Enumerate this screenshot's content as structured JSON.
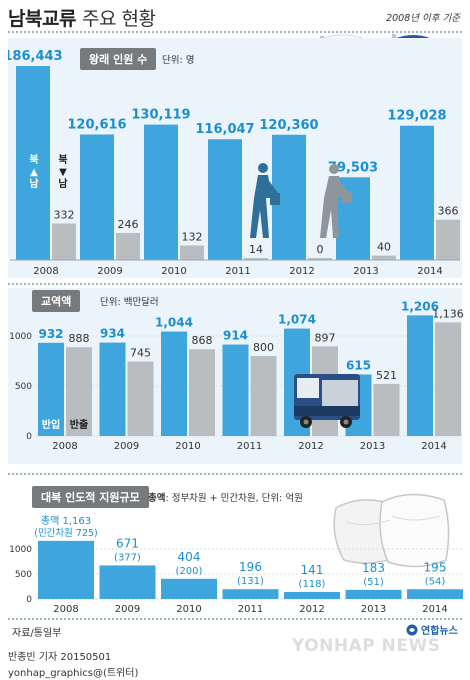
{
  "header": {
    "title_bold": "남북교류",
    "title_rest": "주요 현황",
    "basis": "2008년 이후 기준"
  },
  "colors": {
    "blue": "#3fa6dd",
    "gray": "#b9bdc0",
    "value_blue": "#1c8fd0",
    "panel": "#eaf4fa"
  },
  "icons": [
    "korea-flag-icon",
    "north-korea-flag-icon",
    "walking-person-icon",
    "truck-icon",
    "rice-sack-icon",
    "yonhap-logo-icon"
  ],
  "section1": {
    "title": "왕래 인원 수",
    "unit": "단위: 명",
    "legend_blue": "북▲남",
    "legend_gray": "북▼남",
    "chart_data": {
      "type": "bar",
      "categories": [
        "2008",
        "2009",
        "2010",
        "2011",
        "2012",
        "2013",
        "2014"
      ],
      "series": [
        {
          "name": "북▲남",
          "values": [
            186443,
            120616,
            130119,
            116047,
            120360,
            79503,
            129028
          ],
          "labels": [
            "186,443",
            "120,616",
            "130,119",
            "116,047",
            "120,360",
            "79,503",
            "129,028"
          ]
        },
        {
          "name": "북▼남",
          "values": [
            332,
            246,
            132,
            14,
            0,
            40,
            366
          ],
          "labels": [
            "332",
            "246",
            "132",
            "14",
            "0",
            "40",
            "366"
          ]
        }
      ]
    }
  },
  "section2": {
    "title": "교역액",
    "unit": "단위: 백만달러",
    "legend_blue": "반입",
    "legend_gray": "반출",
    "chart_data": {
      "type": "bar",
      "categories": [
        "2008",
        "2009",
        "2010",
        "2011",
        "2012",
        "2013",
        "2014"
      ],
      "yticks": [
        "0",
        "500",
        "1000"
      ],
      "ylim": [
        0,
        1000
      ],
      "series": [
        {
          "name": "반입",
          "values": [
            932,
            934,
            1044,
            914,
            1074,
            615,
            1206
          ],
          "labels": [
            "932",
            "934",
            "1,044",
            "914",
            "1,074",
            "615",
            "1,206"
          ]
        },
        {
          "name": "반출",
          "values": [
            888,
            745,
            868,
            800,
            897,
            521,
            1136
          ],
          "labels": [
            "888",
            "745",
            "868",
            "800",
            "897",
            "521",
            "1,136"
          ]
        }
      ]
    }
  },
  "section3": {
    "title": "대북 인도적 지원규모",
    "unit_bold": "총액",
    "unit_rest": ": 정부차원 + 민간차원, 단위: 억원",
    "first_label_top": "총액 1,163",
    "first_label_bottom": "(민간차원 725)",
    "chart_data": {
      "type": "bar",
      "categories": [
        "2008",
        "2009",
        "2010",
        "2011",
        "2012",
        "2013",
        "2014"
      ],
      "yticks": [
        "0",
        "500",
        "1000"
      ],
      "ylim": [
        0,
        1000
      ],
      "series": [
        {
          "name": "총액",
          "values": [
            1163,
            671,
            404,
            196,
            141,
            183,
            195
          ],
          "labels": [
            "1,163",
            "671",
            "404",
            "196",
            "141",
            "183",
            "195"
          ]
        },
        {
          "name": "민간차원",
          "values": [
            725,
            377,
            200,
            131,
            118,
            51,
            54
          ],
          "labels": [
            "(민간차원 725)",
            "(377)",
            "(200)",
            "(131)",
            "(118)",
            "(51)",
            "(54)"
          ]
        }
      ]
    }
  },
  "footer": {
    "source": "자료/통일부",
    "reporter": "반종빈 기자 20150501",
    "contact": "yonhap_graphics@(트위터)",
    "logo_text": "연합뉴스",
    "watermark": "YONHAP NEWS"
  }
}
